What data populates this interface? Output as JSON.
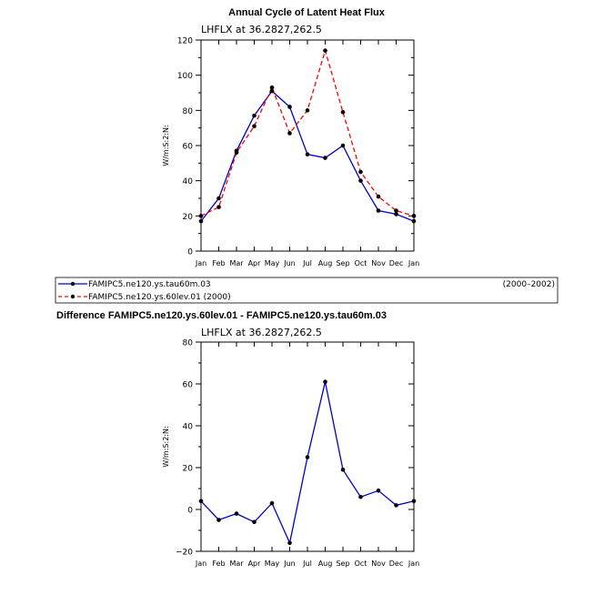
{
  "colors": {
    "series1": "#0000cc",
    "series2": "#ff0000",
    "marker": "#000000"
  },
  "chart_data": [
    {
      "type": "line",
      "title": "Annual Cycle of Latent Heat Flux",
      "subtitle": "LHFLX  at  36.2827,262.5",
      "ylabel": "W/m:S:2:N:",
      "categories": [
        "Jan",
        "Feb",
        "Mar",
        "Apr",
        "May",
        "Jun",
        "Jul",
        "Aug",
        "Sep",
        "Oct",
        "Nov",
        "Dec",
        "Jan"
      ],
      "ylim": [
        0,
        120
      ],
      "yticks": [
        0,
        20,
        40,
        60,
        80,
        100,
        120
      ],
      "yticks_minor": [
        10,
        30,
        50,
        70,
        90,
        110
      ],
      "series": [
        {
          "name": "FAMIPC5.ne120.ys.tau60m.03",
          "style": "solid",
          "color": "#0000cc",
          "values": [
            17,
            30,
            57,
            77,
            91,
            82,
            55,
            53,
            60,
            40,
            23,
            21,
            17
          ]
        },
        {
          "name": "FAMIPC5.ne120.ys.60lev.01",
          "style": "dashed",
          "color": "#ff0000",
          "values": [
            20,
            25,
            56,
            71,
            93,
            67,
            80,
            114,
            79,
            45,
            31,
            23,
            20
          ]
        }
      ],
      "legend": {
        "entries": [
          "FAMIPC5.ne120.ys.tau60m.03",
          "FAMIPC5.ne120.ys.60lev.01  (2000)"
        ],
        "note": "(2000–2002)"
      }
    },
    {
      "type": "line",
      "title": "Difference FAMIPC5.ne120.ys.60lev.01 - FAMIPC5.ne120.ys.tau60m.03",
      "subtitle": "LHFLX  at  36.2827,262.5",
      "ylabel": "W/m:S:2:N:",
      "categories": [
        "Jan",
        "Feb",
        "Mar",
        "Apr",
        "May",
        "Jun",
        "Jul",
        "Aug",
        "Sep",
        "Oct",
        "Nov",
        "Dec",
        "Jan"
      ],
      "ylim": [
        -20,
        80
      ],
      "yticks": [
        -20,
        0,
        20,
        40,
        60,
        80
      ],
      "ytick_labels": [
        "−20",
        "0",
        "20",
        "40",
        "60",
        "80"
      ],
      "yticks_minor": [
        -10,
        10,
        30,
        50,
        70
      ],
      "series": [
        {
          "name": "Difference",
          "style": "solid",
          "color": "#0000cc",
          "values": [
            4,
            -5,
            -2,
            -6,
            3,
            -16,
            25,
            61,
            19,
            6,
            9,
            2,
            4
          ]
        }
      ]
    }
  ]
}
